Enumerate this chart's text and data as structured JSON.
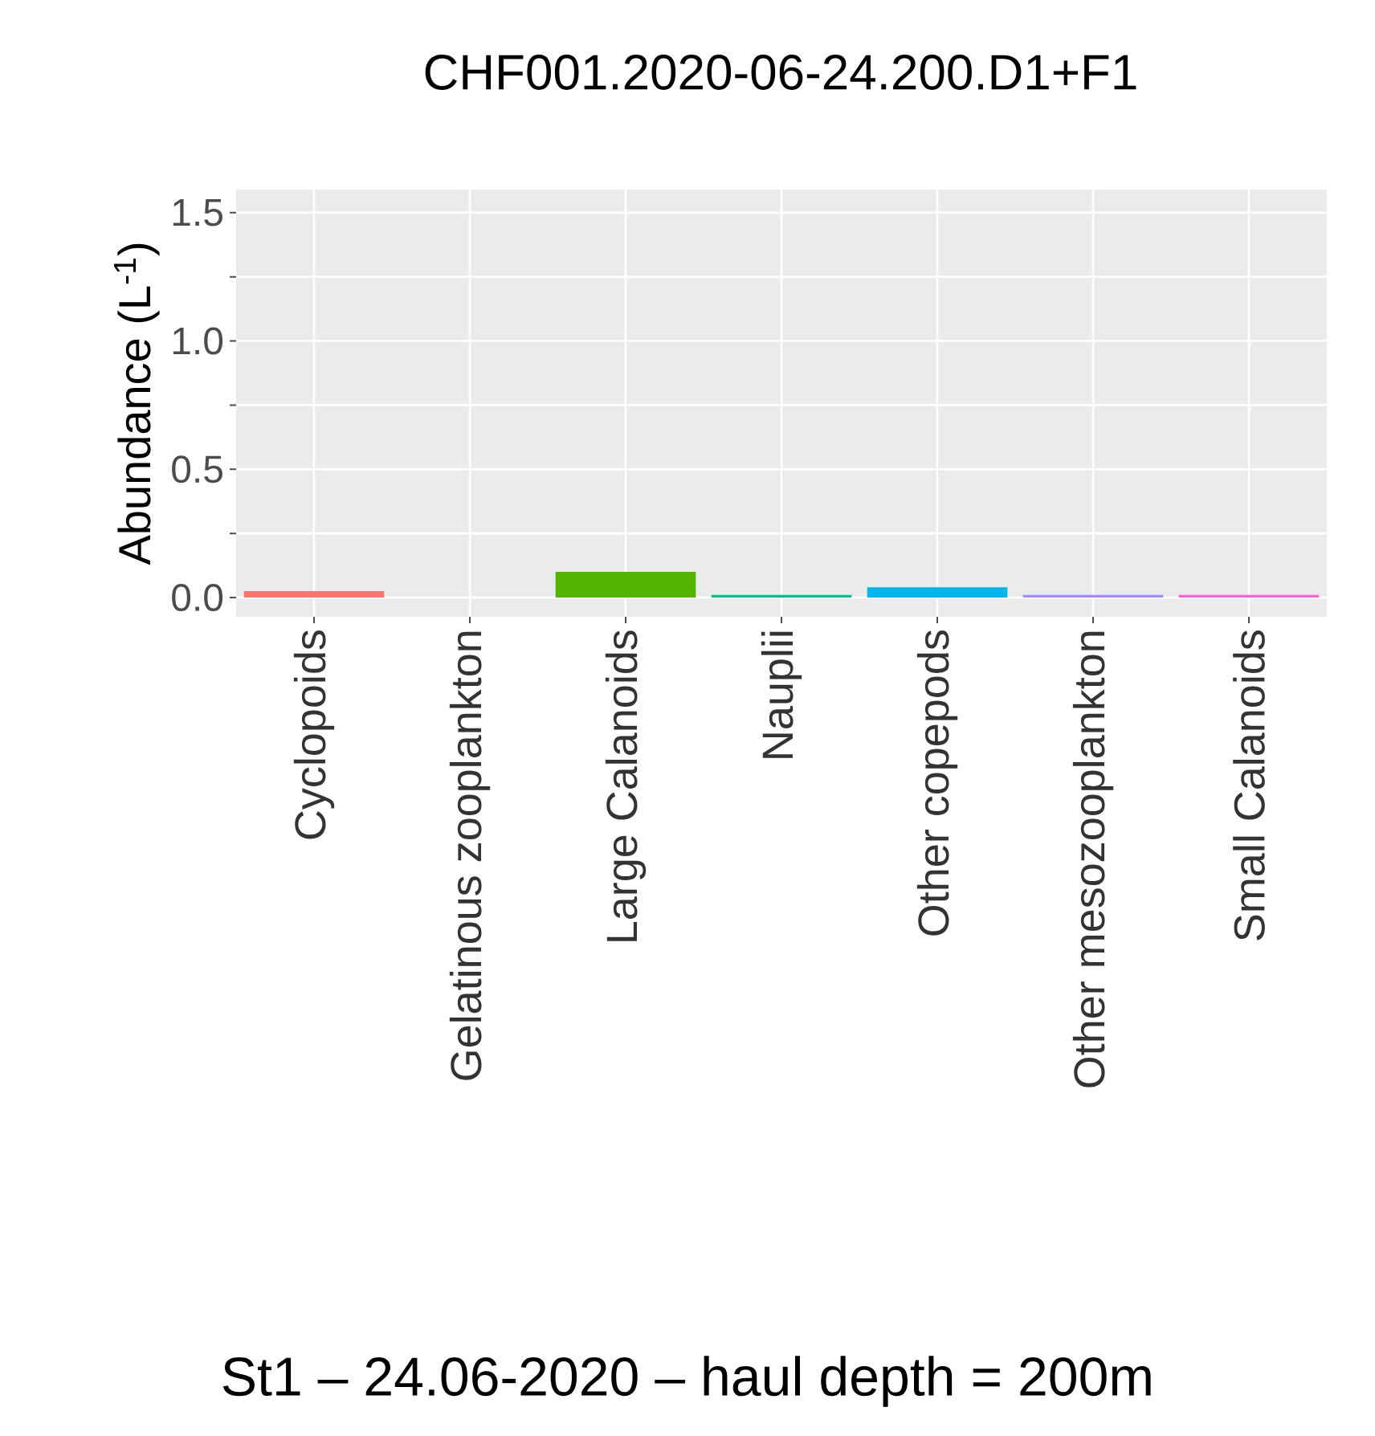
{
  "chart_data": {
    "type": "bar",
    "title": "CHF001.2020-06-24.200.D1+F1",
    "ylabel": "Abundance (L$^{-1}$)",
    "categories": [
      "Cyclopoids",
      "Gelatinous zooplankton",
      "Large Calanoids",
      "Nauplii",
      "Other copepods",
      "Other mesozooplankton",
      "Small Calanoids"
    ],
    "values": [
      0.025,
      0,
      0.1,
      0.01,
      0.04,
      0.01,
      0.01
    ],
    "colors": [
      "#f8766d",
      "#c49a00",
      "#53b400",
      "#00c094",
      "#00b6eb",
      "#a58aff",
      "#fb61d7"
    ],
    "ylim": [
      -0.075,
      1.59
    ],
    "yticks": [
      {
        "value": 0,
        "label": "0.0"
      },
      {
        "value": 0.25,
        "label": null
      },
      0.5,
      {
        "value": 0.75,
        "label": null
      },
      {
        "value": 1,
        "label": "1.0"
      },
      {
        "value": 1.25,
        "label": null
      },
      1.5
    ],
    "grid": true,
    "annotations": [
      "St1 – 24.06-2020 – haul depth = 200m"
    ]
  }
}
